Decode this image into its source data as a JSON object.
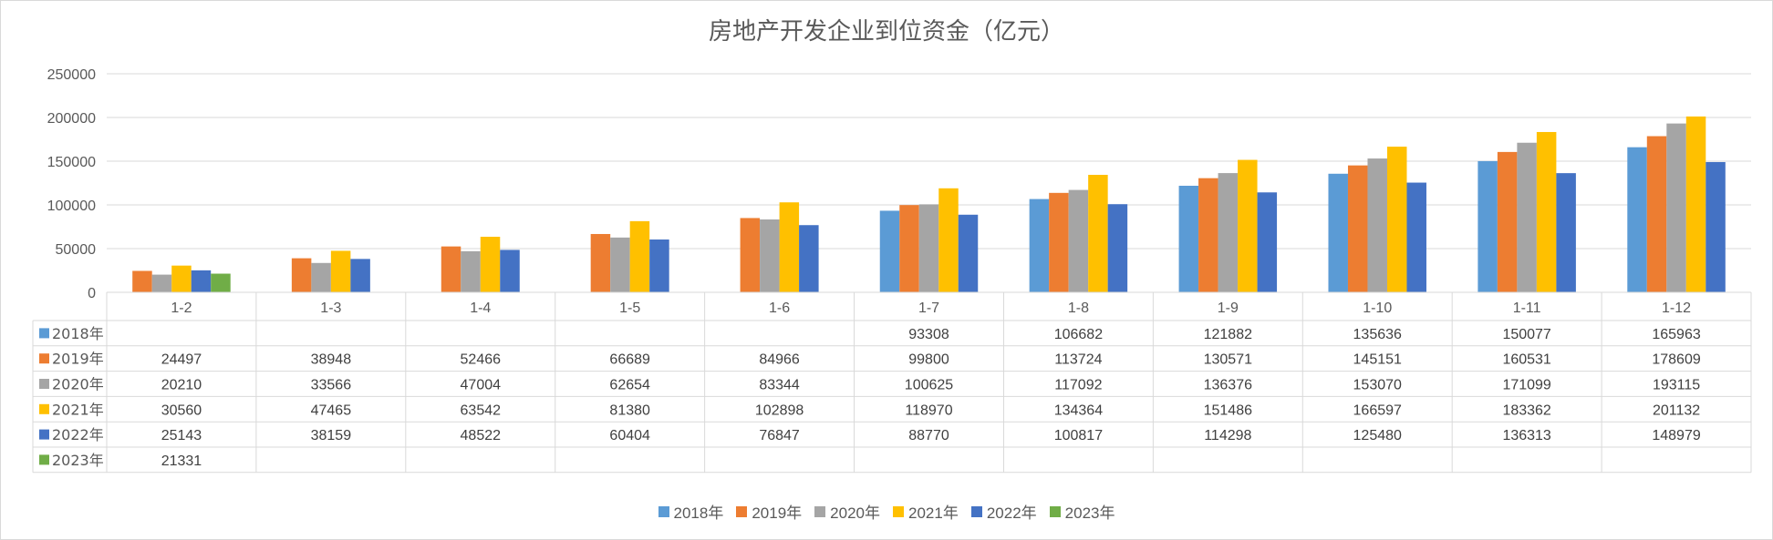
{
  "chart_data": {
    "type": "bar",
    "title": "房地产开发企业到位资金（亿元）",
    "categories": [
      "1-2",
      "1-3",
      "1-4",
      "1-5",
      "1-6",
      "1-7",
      "1-8",
      "1-9",
      "1-10",
      "1-11",
      "1-12"
    ],
    "y_ticks": [
      "0",
      "50000",
      "100000",
      "150000",
      "200000",
      "250000"
    ],
    "ylim": [
      0,
      250000
    ],
    "grid": true,
    "legend_position": "bottom",
    "data_table": true,
    "series": [
      {
        "name": "2018年",
        "color": "#5b9bd5",
        "values": [
          null,
          null,
          null,
          null,
          null,
          93308,
          106682,
          121882,
          135636,
          150077,
          165963
        ]
      },
      {
        "name": "2019年",
        "color": "#ed7d31",
        "values": [
          24497,
          38948,
          52466,
          66689,
          84966,
          99800,
          113724,
          130571,
          145151,
          160531,
          178609
        ]
      },
      {
        "name": "2020年",
        "color": "#a5a5a5",
        "values": [
          20210,
          33566,
          47004,
          62654,
          83344,
          100625,
          117092,
          136376,
          153070,
          171099,
          193115
        ]
      },
      {
        "name": "2021年",
        "color": "#ffc000",
        "values": [
          30560,
          47465,
          63542,
          81380,
          102898,
          118970,
          134364,
          151486,
          166597,
          183362,
          201132
        ]
      },
      {
        "name": "2022年",
        "color": "#4472c4",
        "values": [
          25143,
          38159,
          48522,
          60404,
          76847,
          88770,
          100817,
          114298,
          125480,
          136313,
          148979
        ]
      },
      {
        "name": "2023年",
        "color": "#70ad47",
        "values": [
          21331,
          null,
          null,
          null,
          null,
          null,
          null,
          null,
          null,
          null,
          null
        ]
      }
    ]
  }
}
